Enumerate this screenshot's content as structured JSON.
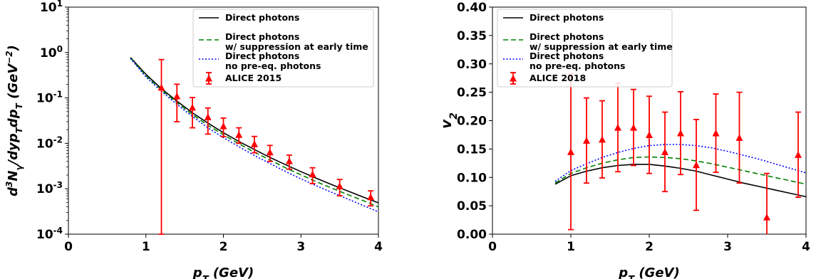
{
  "chart_data": [
    {
      "type": "line",
      "xlabel": "p_T (GeV)",
      "ylabel": "d³N_γ/dyp_Tdp_T (GeV⁻²)",
      "xlim": [
        0,
        4
      ],
      "ylim": [
        0.0001,
        10
      ],
      "yscale": "log",
      "xticks": [
        0,
        1,
        2,
        3,
        4
      ],
      "xtick_labels": [
        "0",
        "1",
        "2",
        "3",
        "4"
      ],
      "yticks": [
        0.0001,
        0.001,
        0.01,
        0.1,
        1,
        10
      ],
      "ytick_exponents": [
        "-4",
        "-3",
        "-2",
        "-1",
        "0",
        "1"
      ],
      "legend_position": "top-right",
      "series": [
        {
          "name": "Direct photons",
          "color": "#000000",
          "style": "solid",
          "x": [
            0.8,
            1.0,
            1.2,
            1.4,
            1.6,
            1.8,
            2.0,
            2.2,
            2.4,
            2.6,
            2.8,
            3.0,
            3.2,
            3.4,
            3.6,
            3.8,
            4.0
          ],
          "y": [
            0.78,
            0.33,
            0.16,
            0.085,
            0.047,
            0.028,
            0.0172,
            0.011,
            0.0073,
            0.0049,
            0.0034,
            0.00238,
            0.0017,
            0.00123,
            0.0009,
            0.00066,
            0.00049
          ]
        },
        {
          "name": "Direct photons",
          "name2": "w/ suppression at early time",
          "color": "#008000",
          "style": "dashed",
          "x": [
            0.8,
            1.0,
            1.2,
            1.4,
            1.6,
            1.8,
            2.0,
            2.2,
            2.4,
            2.6,
            2.8,
            3.0,
            3.2,
            3.4,
            3.6,
            3.8,
            4.0
          ],
          "y": [
            0.76,
            0.31,
            0.15,
            0.079,
            0.043,
            0.025,
            0.0155,
            0.0098,
            0.0064,
            0.0043,
            0.0029,
            0.00202,
            0.00143,
            0.00103,
            0.00075,
            0.00055,
            0.0004
          ]
        },
        {
          "name": "Direct photons",
          "name2": "no pre-eq. photons",
          "color": "#0000ff",
          "style": "dotted",
          "x": [
            0.8,
            1.0,
            1.2,
            1.4,
            1.6,
            1.8,
            2.0,
            2.2,
            2.4,
            2.6,
            2.8,
            3.0,
            3.2,
            3.4,
            3.6,
            3.8,
            4.0
          ],
          "y": [
            0.74,
            0.29,
            0.14,
            0.072,
            0.039,
            0.022,
            0.0134,
            0.0084,
            0.0054,
            0.0036,
            0.0024,
            0.00165,
            0.00116,
            0.00083,
            0.0006,
            0.00043,
            0.00031
          ]
        }
      ],
      "points": {
        "name": "ALICE 2015",
        "color": "#ff0000",
        "x": [
          1.2,
          1.4,
          1.6,
          1.8,
          2.0,
          2.2,
          2.4,
          2.6,
          2.85,
          3.15,
          3.5,
          3.9
        ],
        "y": [
          0.17,
          0.11,
          0.062,
          0.038,
          0.024,
          0.0155,
          0.0097,
          0.0064,
          0.0041,
          0.0021,
          0.00115,
          0.00066
        ],
        "yerr_low": [
          0.17,
          0.08,
          0.04,
          0.022,
          0.01,
          0.0055,
          0.0035,
          0.0024,
          0.0014,
          0.0008,
          0.00045,
          0.00024
        ],
        "yerr_high": [
          0.53,
          0.09,
          0.04,
          0.022,
          0.012,
          0.0065,
          0.0045,
          0.0026,
          0.0014,
          0.0008,
          0.00045,
          0.00024
        ]
      }
    },
    {
      "type": "line",
      "xlabel": "p_T (GeV)",
      "ylabel": "v_2",
      "xlim": [
        0,
        4
      ],
      "ylim": [
        0,
        0.4
      ],
      "xticks": [
        0,
        1,
        2,
        3,
        4
      ],
      "xtick_labels": [
        "0",
        "1",
        "2",
        "3",
        "4"
      ],
      "yticks": [
        0,
        0.05,
        0.1,
        0.15,
        0.2,
        0.25,
        0.3,
        0.35,
        0.4
      ],
      "ytick_labels": [
        "0.00",
        "0.05",
        "0.10",
        "0.15",
        "0.20",
        "0.25",
        "0.30",
        "0.35",
        "0.40"
      ],
      "legend_position": "top-right",
      "series": [
        {
          "name": "Direct photons",
          "color": "#000000",
          "style": "solid",
          "x": [
            0.8,
            1.0,
            1.2,
            1.4,
            1.6,
            1.8,
            2.0,
            2.2,
            2.4,
            2.6,
            2.8,
            3.0,
            3.2,
            3.4,
            3.6,
            3.8,
            4.0
          ],
          "y": [
            0.088,
            0.103,
            0.111,
            0.117,
            0.121,
            0.123,
            0.123,
            0.12,
            0.116,
            0.111,
            0.104,
            0.097,
            0.09,
            0.084,
            0.078,
            0.072,
            0.066
          ]
        },
        {
          "name": "Direct photons",
          "name2": "w/ suppression at early time",
          "color": "#008000",
          "style": "dashed",
          "x": [
            0.8,
            1.0,
            1.2,
            1.4,
            1.6,
            1.8,
            2.0,
            2.2,
            2.4,
            2.6,
            2.8,
            3.0,
            3.2,
            3.4,
            3.6,
            3.8,
            4.0
          ],
          "y": [
            0.09,
            0.107,
            0.117,
            0.125,
            0.131,
            0.135,
            0.136,
            0.135,
            0.133,
            0.129,
            0.124,
            0.118,
            0.112,
            0.106,
            0.1,
            0.094,
            0.088
          ]
        },
        {
          "name": "Direct photons",
          "name2": "no pre-eq. photons",
          "color": "#0000ff",
          "style": "dotted",
          "x": [
            0.8,
            1.0,
            1.2,
            1.4,
            1.6,
            1.8,
            2.0,
            2.2,
            2.4,
            2.6,
            2.8,
            3.0,
            3.2,
            3.4,
            3.6,
            3.8,
            4.0
          ],
          "y": [
            0.093,
            0.112,
            0.124,
            0.135,
            0.144,
            0.151,
            0.156,
            0.158,
            0.158,
            0.156,
            0.152,
            0.146,
            0.139,
            0.132,
            0.124,
            0.116,
            0.108
          ]
        }
      ],
      "points": {
        "name": "ALICE 2018",
        "color": "#ff0000",
        "x": [
          1.0,
          1.2,
          1.4,
          1.6,
          1.8,
          2.0,
          2.2,
          2.4,
          2.6,
          2.85,
          3.15,
          3.5,
          3.9
        ],
        "y": [
          0.145,
          0.165,
          0.167,
          0.188,
          0.188,
          0.175,
          0.145,
          0.178,
          0.122,
          0.178,
          0.17,
          0.03,
          0.14
        ],
        "yerr": [
          0.137,
          0.075,
          0.068,
          0.078,
          0.067,
          0.068,
          0.07,
          0.073,
          0.08,
          0.069,
          0.08,
          0.077,
          0.075
        ]
      }
    }
  ]
}
